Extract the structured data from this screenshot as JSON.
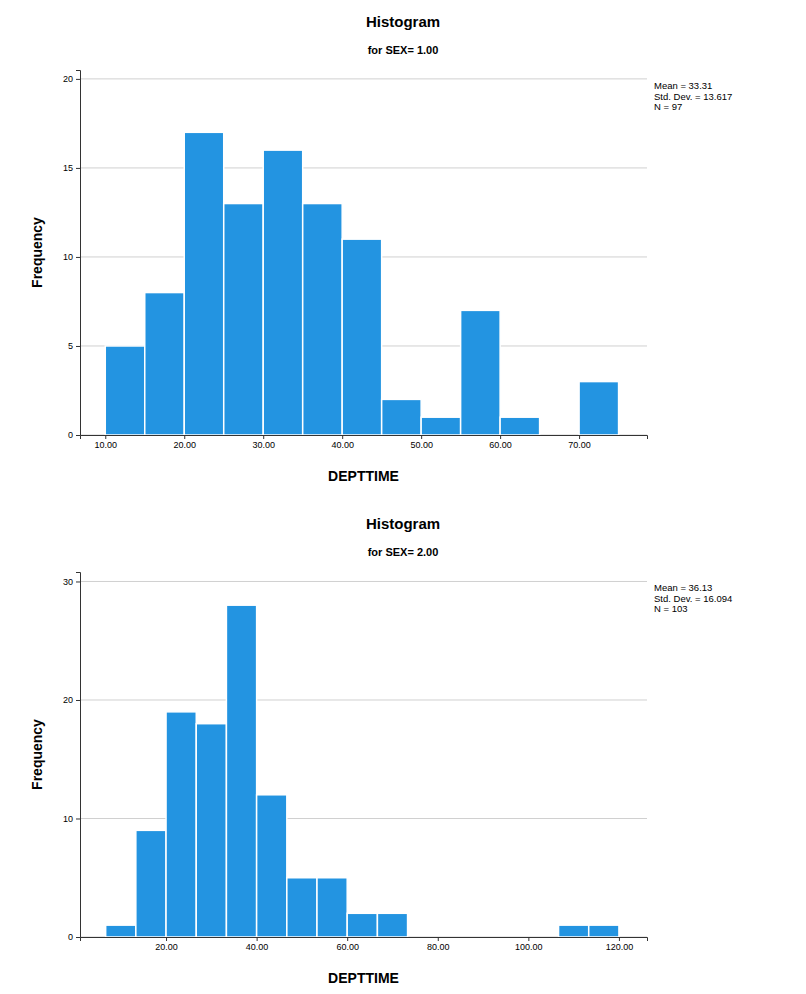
{
  "chart_data": [
    {
      "type": "histogram",
      "title": "Histogram",
      "subtitle": "for SEX= 1.00",
      "x_label": "DEPTTIME",
      "y_label": "Frequency",
      "annotations": [
        "Mean = 33.31",
        "Std. Dev. = 13.617",
        "N = 97"
      ],
      "bins": [
        10,
        15,
        20,
        25,
        30,
        35,
        40,
        45,
        50,
        55,
        60,
        65,
        70,
        75
      ],
      "values": [
        5,
        8,
        17,
        13,
        16,
        13,
        11,
        2,
        1,
        7,
        1,
        0,
        3
      ],
      "color": "#2394e1",
      "xlim": [
        6.8,
        78.6
      ],
      "xticks": [
        {
          "value": 10,
          "label": "10.00"
        },
        {
          "value": 20,
          "label": "20.00"
        },
        {
          "value": 30,
          "label": "30.00"
        },
        {
          "value": 40,
          "label": "40.00"
        },
        {
          "value": 50,
          "label": "50.00"
        },
        {
          "value": 60,
          "label": "60.00"
        },
        {
          "value": 70,
          "label": "70.00"
        }
      ],
      "ylim": [
        0,
        20.5
      ],
      "yticks": [
        0,
        5,
        10,
        15,
        20
      ],
      "grid": true
    },
    {
      "type": "histogram",
      "title": "Histogram",
      "subtitle": "for SEX= 2.00",
      "x_label": "DEPTTIME",
      "y_label": "Frequency",
      "annotations": [
        "Mean = 36.13",
        "Std. Dev. = 16.094",
        "N = 103"
      ],
      "bins": [
        6.67,
        13.33,
        20,
        26.67,
        33.33,
        40,
        46.67,
        53.33,
        60,
        66.67,
        73.33,
        80,
        86.67,
        93.33,
        100,
        106.67,
        113.33,
        120
      ],
      "values": [
        1,
        9,
        19,
        18,
        28,
        12,
        5,
        5,
        2,
        2,
        0,
        0,
        0,
        0,
        0,
        1,
        1
      ],
      "color": "#2394e1",
      "xlim": [
        1,
        126.2
      ],
      "xticks": [
        {
          "value": 20,
          "label": "20.00"
        },
        {
          "value": 40,
          "label": "40.00"
        },
        {
          "value": 60,
          "label": "60.00"
        },
        {
          "value": 80,
          "label": "80.00"
        },
        {
          "value": 100,
          "label": "100.00"
        },
        {
          "value": 120,
          "label": "120.00"
        }
      ],
      "ylim": [
        0,
        30.8
      ],
      "yticks": [
        0,
        10,
        20,
        30
      ],
      "grid": true
    }
  ]
}
